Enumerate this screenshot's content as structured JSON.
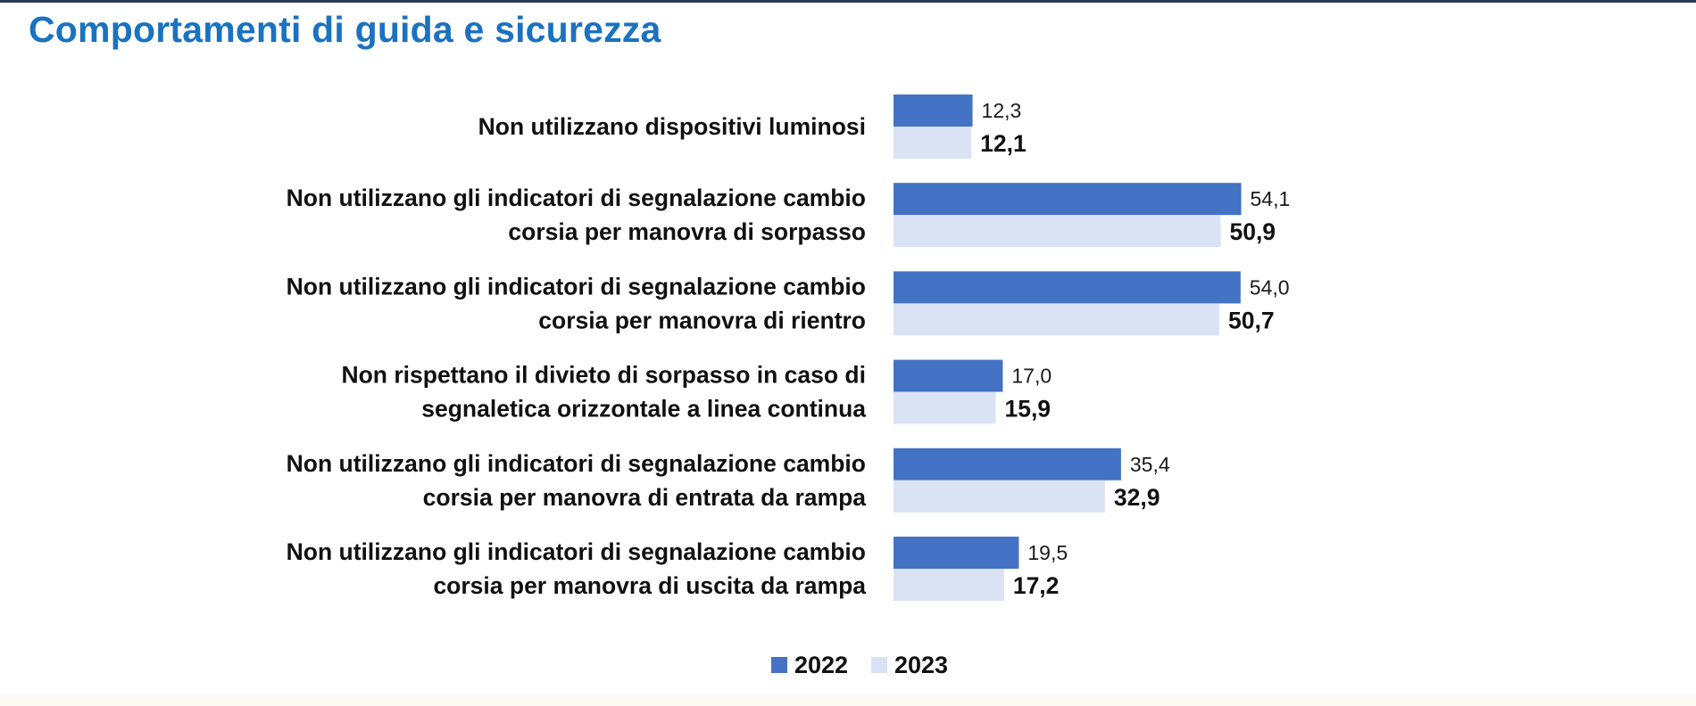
{
  "header": {
    "title": "Comportamenti di guida e sicurezza"
  },
  "chart_data": {
    "type": "bar",
    "orientation": "horizontal",
    "categories": [
      [
        "Non utilizzano dispositivi luminosi"
      ],
      [
        "Non utilizzano gli indicatori di segnalazione cambio",
        "corsia per manovra di sorpasso"
      ],
      [
        "Non utilizzano gli indicatori di segnalazione cambio",
        "corsia per manovra di rientro"
      ],
      [
        "Non rispettano il divieto di sorpasso in caso di",
        "segnaletica orizzontale a linea continua"
      ],
      [
        "Non utilizzano gli indicatori di segnalazione cambio",
        "corsia per manovra di entrata da rampa"
      ],
      [
        "Non utilizzano gli indicatori di segnalazione cambio",
        "corsia per manovra di uscita da rampa"
      ]
    ],
    "series": [
      {
        "name": "2022",
        "color": "#4472c4",
        "values": [
          12.3,
          54.1,
          54.0,
          17.0,
          35.4,
          19.5
        ],
        "labels": [
          "12,3",
          "54,1",
          "54,0",
          "17,0",
          "35,4",
          "19,5"
        ]
      },
      {
        "name": "2023",
        "color": "#dae3f3",
        "values": [
          12.1,
          50.9,
          50.7,
          15.9,
          32.9,
          17.2
        ],
        "labels": [
          "12,1",
          "50,9",
          "50,7",
          "15,9",
          "32,9",
          "17,2"
        ]
      }
    ],
    "xlim": [
      0,
      60
    ],
    "grid": false,
    "legend": "bottom-center"
  }
}
